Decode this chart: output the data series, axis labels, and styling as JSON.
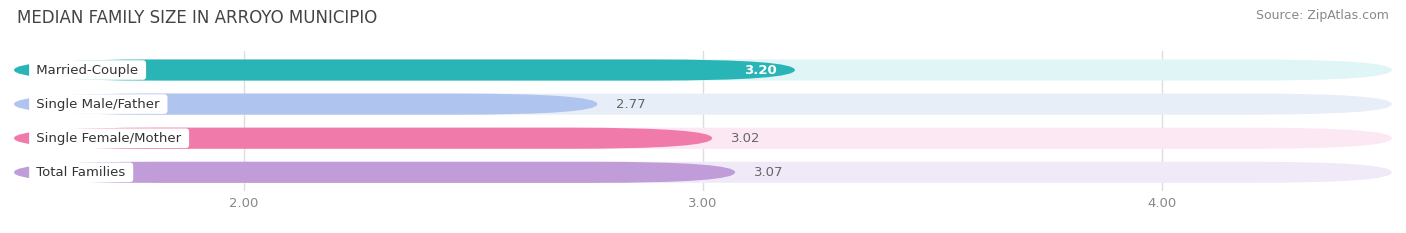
{
  "title": "MEDIAN FAMILY SIZE IN ARROYO MUNICIPIO",
  "source": "Source: ZipAtlas.com",
  "categories": [
    "Married-Couple",
    "Single Male/Father",
    "Single Female/Mother",
    "Total Families"
  ],
  "values": [
    3.2,
    2.77,
    3.02,
    3.07
  ],
  "bar_colors": [
    "#29b5b5",
    "#afc4ee",
    "#f07aaa",
    "#c09cd8"
  ],
  "bar_bg_colors": [
    "#e0f5f5",
    "#e8eef8",
    "#fce8f2",
    "#f0eaf8"
  ],
  "xlim_left": 1.5,
  "xlim_right": 4.5,
  "xticks": [
    2.0,
    3.0,
    4.0
  ],
  "xtick_labels": [
    "2.00",
    "3.00",
    "4.00"
  ],
  "label_fontsize": 9.5,
  "value_fontsize": 9.5,
  "title_fontsize": 12,
  "source_fontsize": 9,
  "bar_height": 0.62,
  "bg_color": "#ffffff"
}
